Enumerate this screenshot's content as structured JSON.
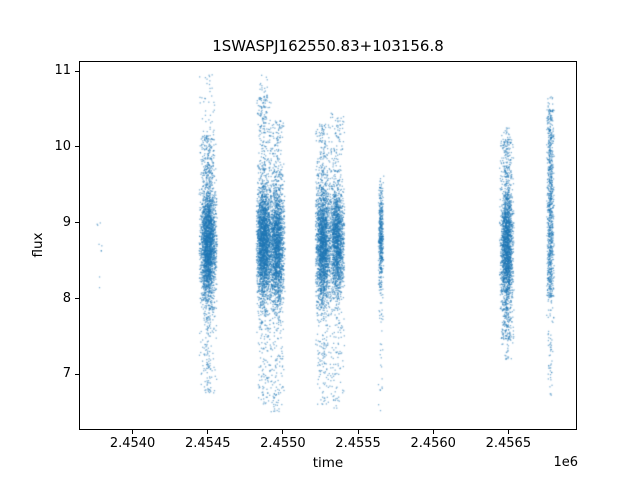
{
  "chart_data": {
    "type": "scatter",
    "title": "1SWASPJ162550.83+103156.8",
    "xlabel": "time",
    "ylabel": "flux",
    "x_offset_label": "1e6",
    "xlim": [
      2453650,
      2456950
    ],
    "ylim": [
      6.28,
      11.12
    ],
    "grid": false,
    "legend": "none",
    "point_color": "#1f77b4",
    "point_alpha": 0.55,
    "seed": 42,
    "x_ticks": [
      {
        "value": 2454000,
        "label": "2.4540"
      },
      {
        "value": 2454500,
        "label": "2.4545"
      },
      {
        "value": 2455000,
        "label": "2.4550"
      },
      {
        "value": 2455500,
        "label": "2.4555"
      },
      {
        "value": 2456000,
        "label": "2.4560"
      },
      {
        "value": 2456500,
        "label": "2.4565"
      }
    ],
    "y_ticks": [
      {
        "value": 7,
        "label": "7"
      },
      {
        "value": 8,
        "label": "8"
      },
      {
        "value": 9,
        "label": "9"
      },
      {
        "value": 10,
        "label": "10"
      },
      {
        "value": 11,
        "label": "11"
      }
    ],
    "clusters": [
      {
        "name": "sparse-epoch-2453785",
        "x_center": 2453785,
        "x_sigma": 18,
        "x_halfwidth": 35,
        "segments": [
          {
            "n": 9,
            "dist": "uniform",
            "y_min": 8.08,
            "y_max": 9.12
          }
        ]
      },
      {
        "name": "epoch-2454503",
        "x_center": 2454503,
        "x_sigma": 26,
        "x_halfwidth": 60,
        "segments": [
          {
            "n": 2600,
            "dist": "gauss",
            "y_mean": 8.72,
            "y_sigma": 0.4,
            "y_min": 7.7,
            "y_max": 9.9
          },
          {
            "n": 160,
            "dist": "uniform",
            "y_min": 9.6,
            "y_max": 10.15
          },
          {
            "n": 45,
            "dist": "uniform",
            "y_min": 10.1,
            "y_max": 11.0
          },
          {
            "n": 130,
            "dist": "uniform",
            "y_min": 6.75,
            "y_max": 7.75
          }
        ]
      },
      {
        "name": "epoch-2454873",
        "x_center": 2454873,
        "x_sigma": 25,
        "x_halfwidth": 50,
        "segments": [
          {
            "n": 2400,
            "dist": "gauss",
            "y_mean": 8.75,
            "y_sigma": 0.4,
            "y_min": 7.8,
            "y_max": 9.85
          },
          {
            "n": 150,
            "dist": "uniform",
            "y_min": 9.7,
            "y_max": 10.65
          },
          {
            "n": 35,
            "dist": "uniform",
            "y_min": 10.5,
            "y_max": 10.95
          },
          {
            "n": 130,
            "dist": "uniform",
            "y_min": 6.6,
            "y_max": 7.85
          }
        ]
      },
      {
        "name": "epoch-2454960",
        "x_center": 2454960,
        "x_sigma": 25,
        "x_halfwidth": 55,
        "segments": [
          {
            "n": 2000,
            "dist": "gauss",
            "y_mean": 8.68,
            "y_sigma": 0.42,
            "y_min": 7.7,
            "y_max": 9.7
          },
          {
            "n": 110,
            "dist": "uniform",
            "y_min": 9.6,
            "y_max": 10.35
          },
          {
            "n": 120,
            "dist": "uniform",
            "y_min": 6.5,
            "y_max": 7.75
          }
        ]
      },
      {
        "name": "epoch-2455267",
        "x_center": 2455267,
        "x_sigma": 25,
        "x_halfwidth": 50,
        "segments": [
          {
            "n": 2100,
            "dist": "gauss",
            "y_mean": 8.7,
            "y_sigma": 0.42,
            "y_min": 7.7,
            "y_max": 9.75
          },
          {
            "n": 120,
            "dist": "uniform",
            "y_min": 9.6,
            "y_max": 10.3
          },
          {
            "n": 110,
            "dist": "uniform",
            "y_min": 6.6,
            "y_max": 7.75
          }
        ]
      },
      {
        "name": "epoch-2455360",
        "x_center": 2455360,
        "x_sigma": 25,
        "x_halfwidth": 50,
        "segments": [
          {
            "n": 1700,
            "dist": "gauss",
            "y_mean": 8.75,
            "y_sigma": 0.38,
            "y_min": 7.8,
            "y_max": 9.7
          },
          {
            "n": 90,
            "dist": "uniform",
            "y_min": 9.6,
            "y_max": 10.45
          },
          {
            "n": 95,
            "dist": "uniform",
            "y_min": 6.55,
            "y_max": 7.85
          }
        ]
      },
      {
        "name": "epoch-2455653",
        "x_center": 2455653,
        "x_sigma": 9,
        "x_halfwidth": 18,
        "segments": [
          {
            "n": 480,
            "dist": "gauss",
            "y_mean": 8.8,
            "y_sigma": 0.36,
            "y_min": 8.0,
            "y_max": 9.62
          },
          {
            "n": 22,
            "dist": "uniform",
            "y_min": 7.0,
            "y_max": 8.0
          },
          {
            "n": 8,
            "dist": "uniform",
            "y_min": 6.5,
            "y_max": 7.0
          }
        ]
      },
      {
        "name": "epoch-2456490",
        "x_center": 2456490,
        "x_sigma": 20,
        "x_halfwidth": 48,
        "segments": [
          {
            "n": 1900,
            "dist": "gauss",
            "y_mean": 8.7,
            "y_sigma": 0.45,
            "y_min": 7.85,
            "y_max": 9.7
          },
          {
            "n": 130,
            "dist": "uniform",
            "y_min": 9.6,
            "y_max": 10.1
          },
          {
            "n": 22,
            "dist": "uniform",
            "y_min": 10.0,
            "y_max": 10.25
          },
          {
            "n": 150,
            "dist": "uniform",
            "y_min": 7.45,
            "y_max": 7.9
          },
          {
            "n": 25,
            "dist": "uniform",
            "y_min": 7.2,
            "y_max": 7.5
          }
        ]
      },
      {
        "name": "epoch-2456780",
        "x_center": 2456780,
        "x_sigma": 12,
        "x_halfwidth": 25,
        "segments": [
          {
            "n": 550,
            "dist": "uniform",
            "y_min": 8.0,
            "y_max": 10.5
          },
          {
            "n": 320,
            "dist": "gauss",
            "y_mean": 9.0,
            "y_sigma": 0.6,
            "y_min": 7.9,
            "y_max": 10.5
          },
          {
            "n": 55,
            "dist": "uniform",
            "y_min": 6.7,
            "y_max": 8.0
          },
          {
            "n": 10,
            "dist": "uniform",
            "y_min": 10.5,
            "y_max": 10.67
          }
        ]
      }
    ]
  }
}
